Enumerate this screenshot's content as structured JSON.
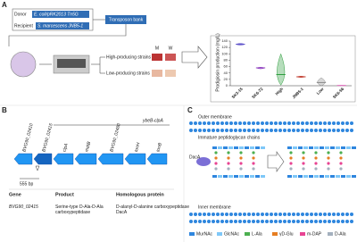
{
  "panel_a": {
    "label": "A",
    "donor": "Donor",
    "donor_strain": "E. coli/pRK2013 Tn5G",
    "recipient": "Recipient",
    "recipient_strain": "S. marcescens JNB5-1",
    "bank": "Transposon bank",
    "col_m": "M",
    "col_w": "W",
    "high": "High-producing strains",
    "low": "Low-producing strains"
  },
  "chart_data": {
    "type": "violin",
    "ylabel": "Prodigiosin production (mg/L)",
    "categories": [
      "SK3-15",
      "SK6-72",
      "High",
      "JNB5-1",
      "Low",
      "SK6-56"
    ],
    "values": [
      130,
      56,
      35,
      28,
      10,
      1
    ],
    "min": [
      127,
      53,
      2,
      26,
      0,
      0
    ],
    "max": [
      133,
      58,
      100,
      30,
      25,
      2
    ],
    "colors": [
      "#5b4fc9",
      "#8e3fbf",
      "#2e9e3e",
      "#c0392b",
      "#8c8c8c",
      "#e377c2"
    ],
    "ylim": [
      0,
      140
    ],
    "yticks": [
      0,
      20,
      40,
      60,
      80,
      100,
      120,
      140
    ]
  },
  "panel_b": {
    "label": "B",
    "operon": "ybeB-clpA",
    "insert": "555 bp",
    "genes": [
      "BVG90_02410",
      "BVG90_02415",
      "clpA",
      "mdtB",
      "BVG90_02480",
      "tonH",
      "tonB"
    ],
    "table": {
      "header": [
        "Gene",
        "Product",
        "Homologous protein"
      ],
      "row": [
        "BVG90_02415",
        "Serine-type D-Ala-D-Ala carboxypeptidase",
        "D-alanyl-D-alanine carboxypeptidase DacA"
      ]
    }
  },
  "panel_c": {
    "label": "C",
    "outer": "Outer membrane",
    "chains": "Immature peptidoglycan chains",
    "enzyme": "DacA",
    "inner": "Inner membrane",
    "legend": [
      {
        "name": "MurNAc",
        "color": "#2e86de"
      },
      {
        "name": "GlcNAc",
        "color": "#7fc8f8"
      },
      {
        "name": "L-Ala",
        "color": "#4caf50"
      },
      {
        "name": "γD-Glu",
        "color": "#e67e22"
      },
      {
        "name": "m-DAP",
        "color": "#e84393"
      },
      {
        "name": "D-Ala",
        "color": "#a4b0be"
      }
    ]
  }
}
